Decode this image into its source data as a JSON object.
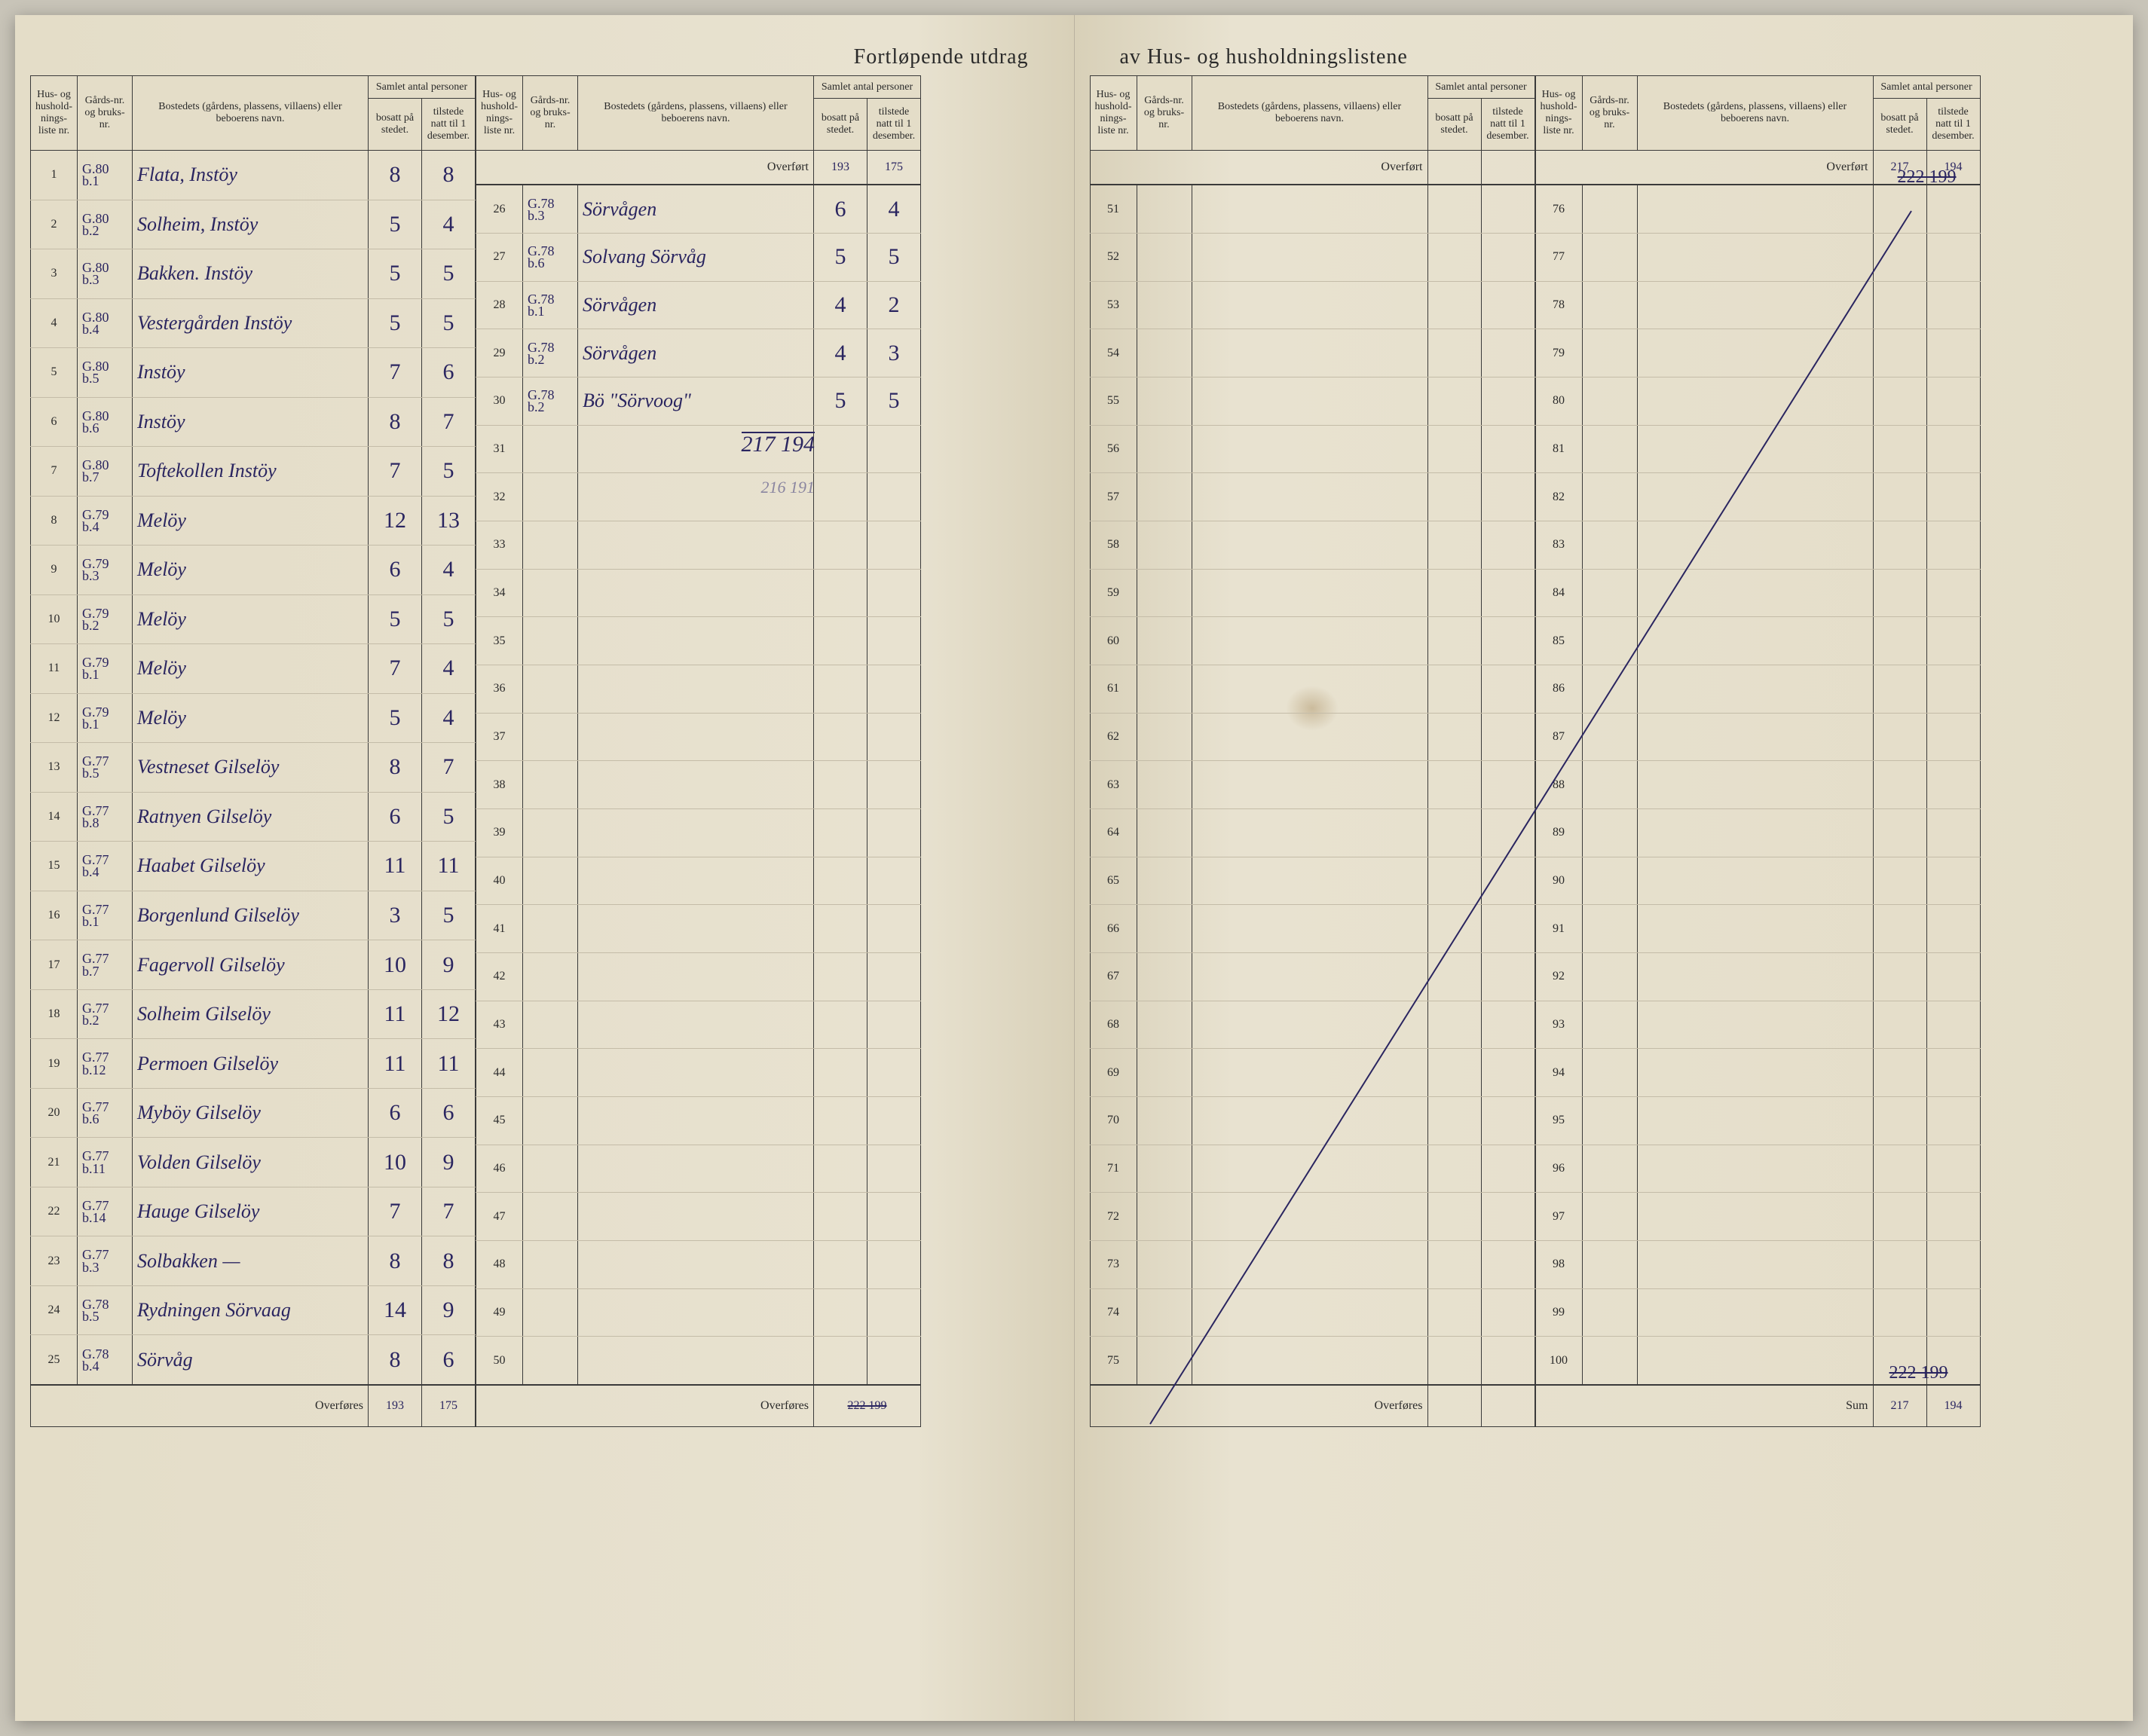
{
  "title_left": "Fortløpende utdrag",
  "title_right": "av Hus- og husholdningslistene",
  "headers": {
    "col1": "Hus- og hushold-nings-liste nr.",
    "col2": "Gårds-nr. og bruks-nr.",
    "col3": "Bostedets (gårdens, plassens, villaens) eller beboerens navn.",
    "col4_super": "Samlet antal personer",
    "col4a": "bosatt på stedet.",
    "col4b": "tilstede natt til 1 desember."
  },
  "overfort": "Overført",
  "overfores": "Overføres",
  "sum": "Sum",
  "block1": {
    "rows": [
      {
        "nr": "1",
        "gnr": "G.80\nb.1",
        "name": "Flata, Instöy",
        "b": "8",
        "t": "8"
      },
      {
        "nr": "2",
        "gnr": "G.80\nb.2",
        "name": "Solheim, Instöy",
        "b": "5",
        "t": "4"
      },
      {
        "nr": "3",
        "gnr": "G.80\nb.3",
        "name": "Bakken. Instöy",
        "b": "5",
        "t": "5"
      },
      {
        "nr": "4",
        "gnr": "G.80\nb.4",
        "name": "Vestergården Instöy",
        "b": "5",
        "t": "5"
      },
      {
        "nr": "5",
        "gnr": "G.80\nb.5",
        "name": "Instöy",
        "b": "7",
        "t": "6"
      },
      {
        "nr": "6",
        "gnr": "G.80\nb.6",
        "name": "Instöy",
        "b": "8",
        "t": "7"
      },
      {
        "nr": "7",
        "gnr": "G.80\nb.7",
        "name": "Toftekollen Instöy",
        "b": "7",
        "t": "5"
      },
      {
        "nr": "8",
        "gnr": "G.79\nb.4",
        "name": "Melöy",
        "b": "12",
        "t": "13"
      },
      {
        "nr": "9",
        "gnr": "G.79\nb.3",
        "name": "Melöy",
        "b": "6",
        "t": "4"
      },
      {
        "nr": "10",
        "gnr": "G.79\nb.2",
        "name": "Melöy",
        "b": "5",
        "t": "5"
      },
      {
        "nr": "11",
        "gnr": "G.79\nb.1",
        "name": "Melöy",
        "b": "7",
        "t": "4"
      },
      {
        "nr": "12",
        "gnr": "G.79\nb.1",
        "name": "Melöy",
        "b": "5",
        "t": "4"
      },
      {
        "nr": "13",
        "gnr": "G.77\nb.5",
        "name": "Vestneset Gilselöy",
        "b": "8",
        "t": "7"
      },
      {
        "nr": "14",
        "gnr": "G.77\nb.8",
        "name": "Ratnyen Gilselöy",
        "b": "6",
        "t": "5"
      },
      {
        "nr": "15",
        "gnr": "G.77\nb.4",
        "name": "Haabet Gilselöy",
        "b": "11",
        "t": "11"
      },
      {
        "nr": "16",
        "gnr": "G.77\nb.1",
        "name": "Borgenlund Gilselöy",
        "b": "3",
        "t": "5"
      },
      {
        "nr": "17",
        "gnr": "G.77\nb.7",
        "name": "Fagervoll Gilselöy",
        "b": "10",
        "t": "9"
      },
      {
        "nr": "18",
        "gnr": "G.77\nb.2",
        "name": "Solheim Gilselöy",
        "b": "11",
        "t": "12"
      },
      {
        "nr": "19",
        "gnr": "G.77\nb.12",
        "name": "Permoen Gilselöy",
        "b": "11",
        "t": "11"
      },
      {
        "nr": "20",
        "gnr": "G.77\nb.6",
        "name": "Myböy Gilselöy",
        "b": "6",
        "t": "6"
      },
      {
        "nr": "21",
        "gnr": "G.77\nb.11",
        "name": "Volden Gilselöy",
        "b": "10",
        "t": "9"
      },
      {
        "nr": "22",
        "gnr": "G.77\nb.14",
        "name": "Hauge Gilselöy",
        "b": "7",
        "t": "7"
      },
      {
        "nr": "23",
        "gnr": "G.77\nb.3",
        "name": "Solbakken —",
        "b": "8",
        "t": "8"
      },
      {
        "nr": "24",
        "gnr": "G.78\nb.5",
        "name": "Rydningen Sörvaag",
        "b": "14",
        "t": "9"
      },
      {
        "nr": "25",
        "gnr": "G.78\nb.4",
        "name": "Sörvåg",
        "b": "8",
        "t": "6"
      }
    ],
    "carry_b": "193",
    "carry_t": "175"
  },
  "block2": {
    "overfort_b": "193",
    "overfort_t": "175",
    "rows": [
      {
        "nr": "26",
        "gnr": "G.78\nb.3",
        "name": "Sörvågen",
        "b": "6",
        "t": "4"
      },
      {
        "nr": "27",
        "gnr": "G.78\nb.6",
        "name": "Solvang Sörvåg",
        "b": "5",
        "t": "5"
      },
      {
        "nr": "28",
        "gnr": "G.78\nb.1",
        "name": "Sörvågen",
        "b": "4",
        "t": "2"
      },
      {
        "nr": "29",
        "gnr": "G.78\nb.2",
        "name": "Sörvågen",
        "b": "4",
        "t": "3"
      },
      {
        "nr": "30",
        "gnr": "G.78\nb.2",
        "name": "Bö \"Sörvoog\"",
        "b": "5",
        "t": "5"
      },
      {
        "nr": "31",
        "gnr": "",
        "name": "",
        "b": "",
        "t": ""
      },
      {
        "nr": "32",
        "gnr": "",
        "name": "",
        "b": "",
        "t": ""
      },
      {
        "nr": "33",
        "gnr": "",
        "name": "",
        "b": "",
        "t": ""
      },
      {
        "nr": "34",
        "gnr": "",
        "name": "",
        "b": "",
        "t": ""
      },
      {
        "nr": "35",
        "gnr": "",
        "name": "",
        "b": "",
        "t": ""
      },
      {
        "nr": "36",
        "gnr": "",
        "name": "",
        "b": "",
        "t": ""
      },
      {
        "nr": "37",
        "gnr": "",
        "name": "",
        "b": "",
        "t": ""
      },
      {
        "nr": "38",
        "gnr": "",
        "name": "",
        "b": "",
        "t": ""
      },
      {
        "nr": "39",
        "gnr": "",
        "name": "",
        "b": "",
        "t": ""
      },
      {
        "nr": "40",
        "gnr": "",
        "name": "",
        "b": "",
        "t": ""
      },
      {
        "nr": "41",
        "gnr": "",
        "name": "",
        "b": "",
        "t": ""
      },
      {
        "nr": "42",
        "gnr": "",
        "name": "",
        "b": "",
        "t": ""
      },
      {
        "nr": "43",
        "gnr": "",
        "name": "",
        "b": "",
        "t": ""
      },
      {
        "nr": "44",
        "gnr": "",
        "name": "",
        "b": "",
        "t": ""
      },
      {
        "nr": "45",
        "gnr": "",
        "name": "",
        "b": "",
        "t": ""
      },
      {
        "nr": "46",
        "gnr": "",
        "name": "",
        "b": "",
        "t": ""
      },
      {
        "nr": "47",
        "gnr": "",
        "name": "",
        "b": "",
        "t": ""
      },
      {
        "nr": "48",
        "gnr": "",
        "name": "",
        "b": "",
        "t": ""
      },
      {
        "nr": "49",
        "gnr": "",
        "name": "",
        "b": "",
        "t": ""
      },
      {
        "nr": "50",
        "gnr": "",
        "name": "",
        "b": "",
        "t": ""
      }
    ],
    "sum_below_30_b": "217",
    "sum_below_30_t": "194",
    "sum_below_32_b": "216",
    "sum_below_32_t": "191",
    "carry_struck": "222 199"
  },
  "block3": {
    "rows": [
      {
        "nr": "51"
      },
      {
        "nr": "52"
      },
      {
        "nr": "53"
      },
      {
        "nr": "54"
      },
      {
        "nr": "55"
      },
      {
        "nr": "56"
      },
      {
        "nr": "57"
      },
      {
        "nr": "58"
      },
      {
        "nr": "59"
      },
      {
        "nr": "60"
      },
      {
        "nr": "61"
      },
      {
        "nr": "62"
      },
      {
        "nr": "63"
      },
      {
        "nr": "64"
      },
      {
        "nr": "65"
      },
      {
        "nr": "66"
      },
      {
        "nr": "67"
      },
      {
        "nr": "68"
      },
      {
        "nr": "69"
      },
      {
        "nr": "70"
      },
      {
        "nr": "71"
      },
      {
        "nr": "72"
      },
      {
        "nr": "73"
      },
      {
        "nr": "74"
      },
      {
        "nr": "75"
      }
    ]
  },
  "block4": {
    "overfort_b": "217",
    "overfort_t": "194",
    "overfort_struck": "222 199",
    "rows": [
      {
        "nr": "76"
      },
      {
        "nr": "77"
      },
      {
        "nr": "78"
      },
      {
        "nr": "79"
      },
      {
        "nr": "80"
      },
      {
        "nr": "81"
      },
      {
        "nr": "82"
      },
      {
        "nr": "83"
      },
      {
        "nr": "84"
      },
      {
        "nr": "85"
      },
      {
        "nr": "86"
      },
      {
        "nr": "87"
      },
      {
        "nr": "88"
      },
      {
        "nr": "89"
      },
      {
        "nr": "90"
      },
      {
        "nr": "91"
      },
      {
        "nr": "92"
      },
      {
        "nr": "93"
      },
      {
        "nr": "94"
      },
      {
        "nr": "95"
      },
      {
        "nr": "96"
      },
      {
        "nr": "97"
      },
      {
        "nr": "98"
      },
      {
        "nr": "99"
      },
      {
        "nr": "100"
      }
    ],
    "sum_b": "217",
    "sum_t": "194",
    "sum_struck": "222 199"
  },
  "colors": {
    "paper": "#e8e2d0",
    "ink": "#2a2a2a",
    "pen": "#2a2560",
    "rule": "#3a3a3a",
    "faint_rule": "#c4bca8"
  }
}
